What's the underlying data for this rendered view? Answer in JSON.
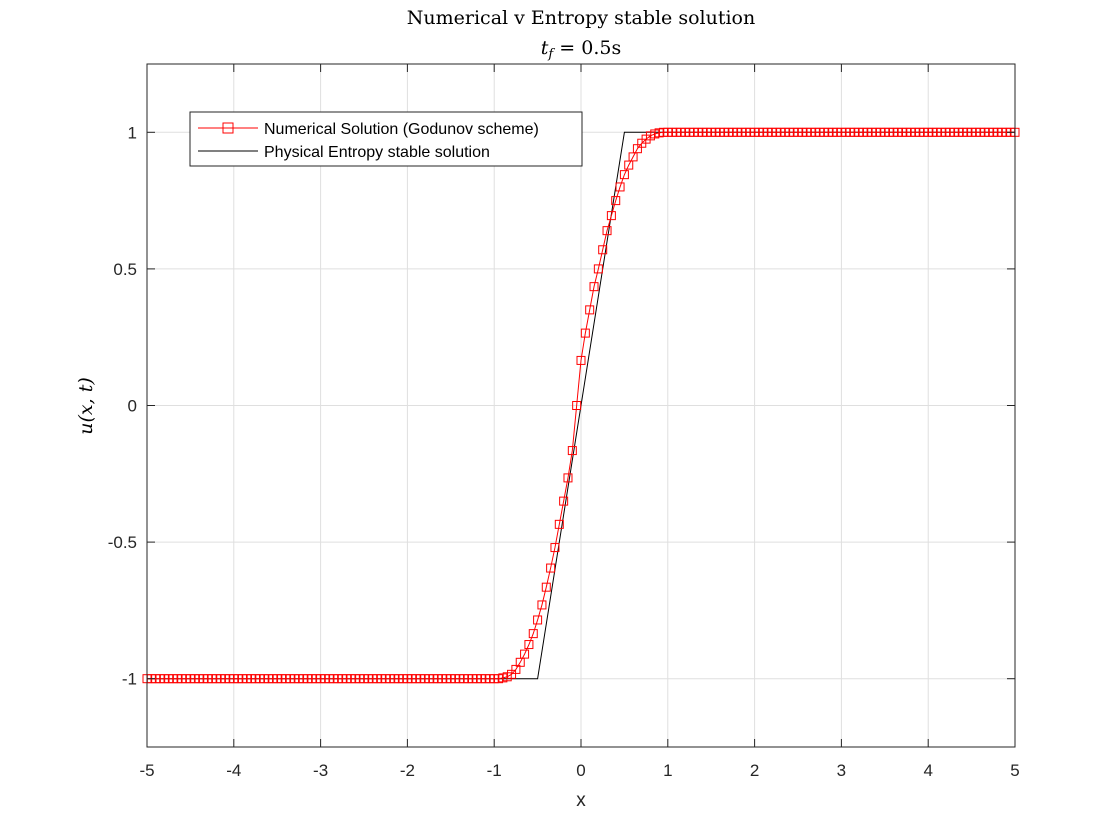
{
  "chart_data": {
    "type": "line",
    "title": "Numerical v Entropy stable solution",
    "subtitle_parts": {
      "lhs": "t",
      "sub": "f",
      "rhs": " = 0.5s"
    },
    "xlabel": "x",
    "ylabel": "u(x, t)",
    "xlim": [
      -5,
      5
    ],
    "ylim": [
      -1.25,
      1.25
    ],
    "xticks": [
      -5,
      -4,
      -3,
      -2,
      -1,
      0,
      1,
      2,
      3,
      4,
      5
    ],
    "yticks": [
      -1,
      -0.5,
      0,
      0.5,
      1
    ],
    "xtick_labels": [
      "-5",
      "-4",
      "-3",
      "-2",
      "-1",
      "0",
      "1",
      "2",
      "3",
      "4",
      "5"
    ],
    "ytick_labels": [
      "-1",
      "-0.5",
      "0",
      "0.5",
      "1"
    ],
    "grid": true,
    "legend_position": "top-left",
    "series": [
      {
        "name": "Numerical Solution (Godunov scheme)",
        "color": "#ff0000",
        "marker": "square",
        "x_start": -5,
        "x_step": 0.05,
        "y": [
          -1,
          -1,
          -1,
          -1,
          -1,
          -1,
          -1,
          -1,
          -1,
          -1,
          -1,
          -1,
          -1,
          -1,
          -1,
          -1,
          -1,
          -1,
          -1,
          -1,
          -1,
          -1,
          -1,
          -1,
          -1,
          -1,
          -1,
          -1,
          -1,
          -1,
          -1,
          -1,
          -1,
          -1,
          -1,
          -1,
          -1,
          -1,
          -1,
          -1,
          -1,
          -1,
          -1,
          -1,
          -1,
          -1,
          -1,
          -1,
          -1,
          -1,
          -1,
          -1,
          -1,
          -1,
          -1,
          -1,
          -1,
          -1,
          -1,
          -1,
          -1,
          -1,
          -1,
          -1,
          -1,
          -1,
          -1,
          -1,
          -1,
          -1,
          -1,
          -1,
          -1,
          -1,
          -1,
          -1,
          -1,
          -1,
          -1,
          -1,
          -1,
          -1,
          -0.997,
          -0.993,
          -0.984,
          -0.966,
          -0.94,
          -0.91,
          -0.875,
          -0.835,
          -0.785,
          -0.73,
          -0.665,
          -0.595,
          -0.52,
          -0.435,
          -0.35,
          -0.265,
          -0.165,
          0,
          0.165,
          0.265,
          0.35,
          0.435,
          0.5,
          0.57,
          0.64,
          0.695,
          0.75,
          0.8,
          0.845,
          0.88,
          0.91,
          0.94,
          0.96,
          0.975,
          0.987,
          0.994,
          0.998,
          1,
          1,
          1,
          1,
          1,
          1,
          1,
          1,
          1,
          1,
          1,
          1,
          1,
          1,
          1,
          1,
          1,
          1,
          1,
          1,
          1,
          1,
          1,
          1,
          1,
          1,
          1,
          1,
          1,
          1,
          1,
          1,
          1,
          1,
          1,
          1,
          1,
          1,
          1,
          1,
          1,
          1,
          1,
          1,
          1,
          1,
          1,
          1,
          1,
          1,
          1,
          1,
          1,
          1,
          1,
          1,
          1,
          1,
          1,
          1,
          1,
          1,
          1,
          1,
          1,
          1,
          1,
          1,
          1,
          1,
          1,
          1,
          1,
          1,
          1,
          1,
          1,
          1,
          1,
          1,
          1,
          1
        ]
      },
      {
        "name": "Physical Entropy stable solution",
        "color": "#000000",
        "marker": "none",
        "x": [
          -5,
          -0.6,
          -0.5,
          0.5,
          0.6,
          5
        ],
        "y": [
          -1,
          -1,
          -1,
          1,
          1,
          1
        ]
      }
    ]
  }
}
